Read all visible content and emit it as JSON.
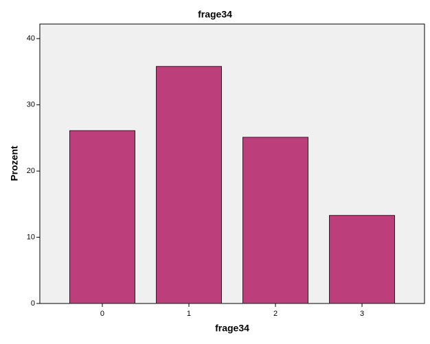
{
  "chart_data": {
    "type": "bar",
    "title": "frage34",
    "x_label": "frage34",
    "y_label": "Prozent",
    "categories": [
      "0",
      "1",
      "2",
      "3"
    ],
    "values": [
      26.1,
      35.8,
      25.1,
      13.3
    ],
    "color": "#bc3e7a",
    "ylim": [
      0,
      42.2
    ],
    "yticks": [
      0,
      10,
      20,
      30,
      40
    ],
    "grid": false
  }
}
